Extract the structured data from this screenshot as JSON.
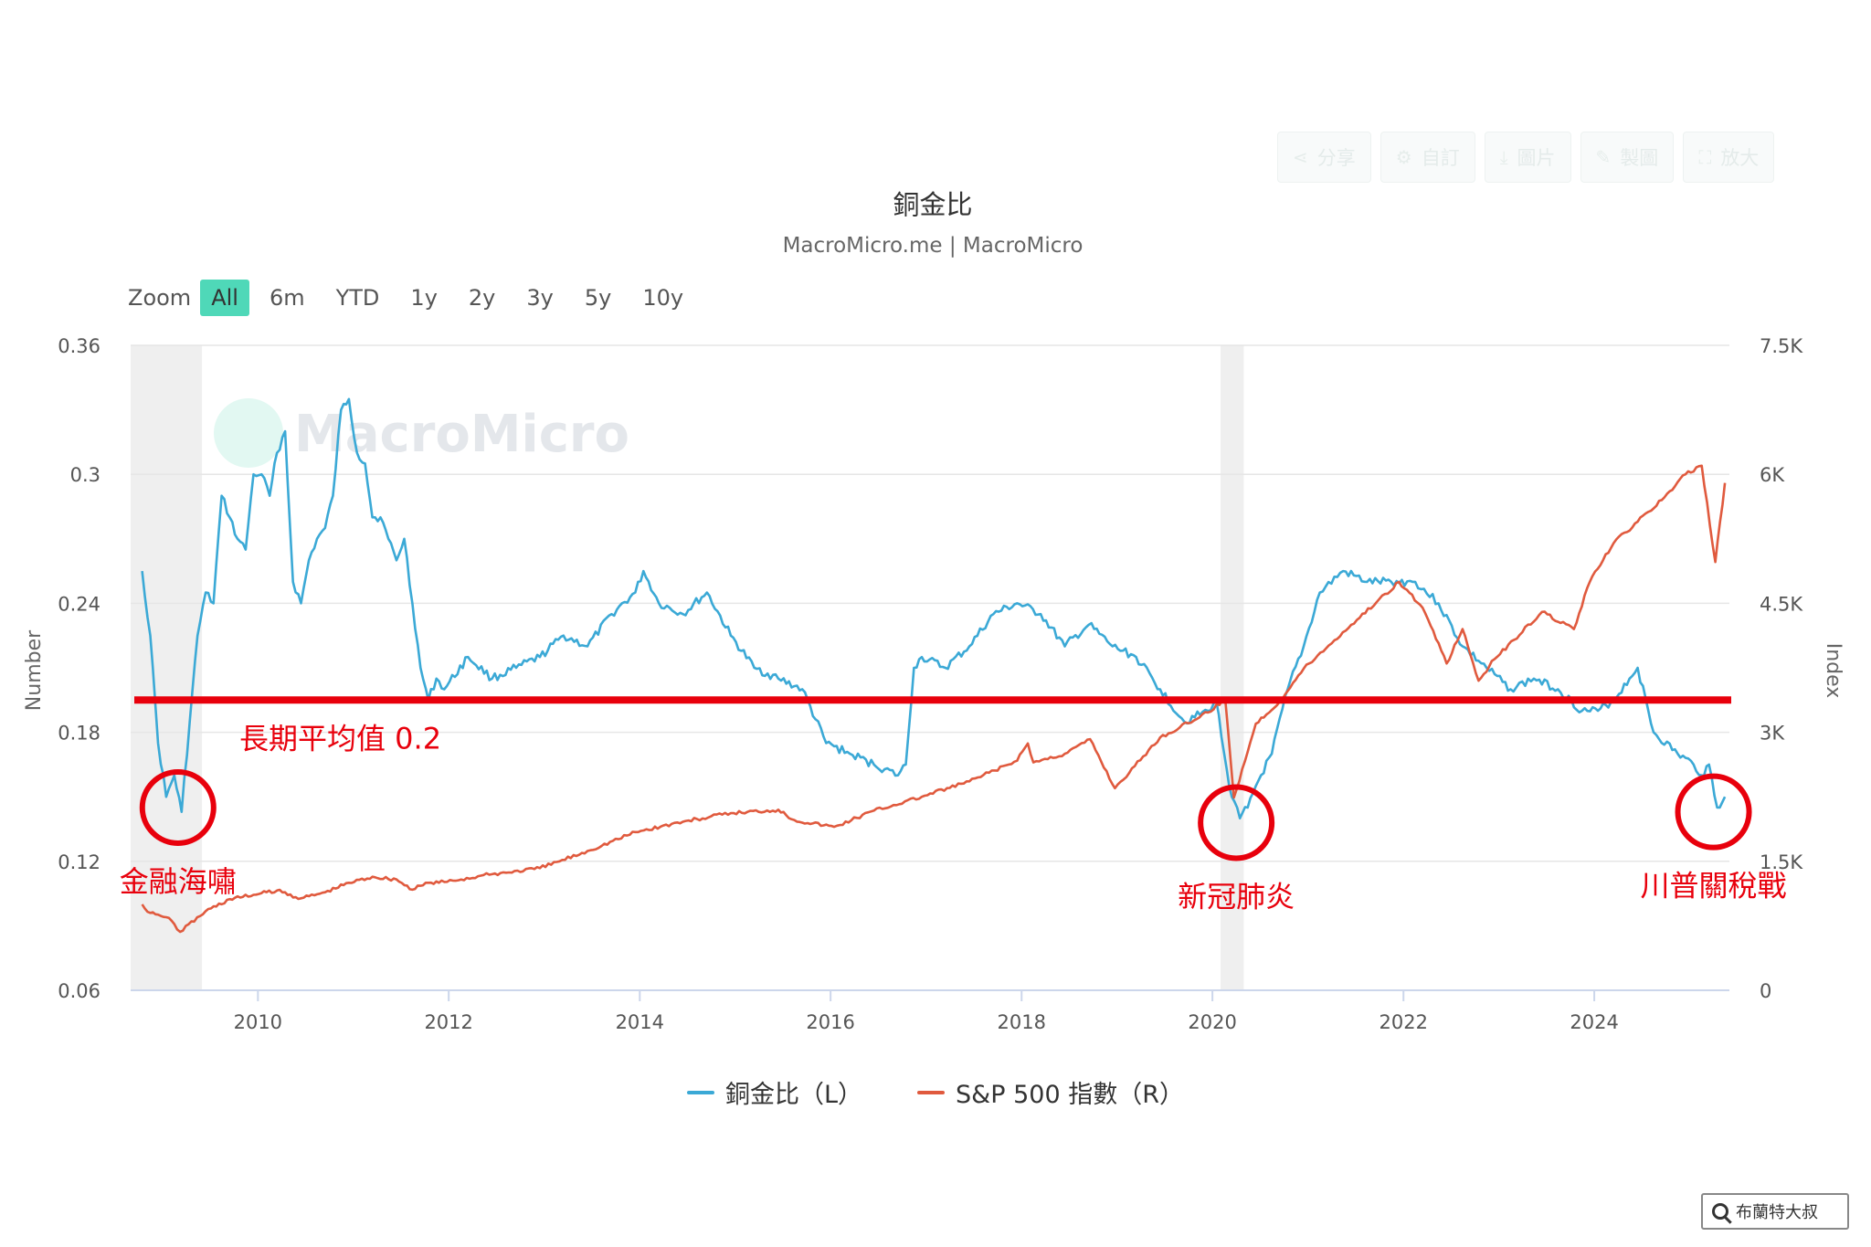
{
  "toolbar": {
    "buttons": [
      {
        "label": "分享",
        "icon": "share-icon"
      },
      {
        "label": "自訂",
        "icon": "gear-icon"
      },
      {
        "label": "圖片",
        "icon": "download-icon"
      },
      {
        "label": "製圖",
        "icon": "pencil-icon"
      },
      {
        "label": "放大",
        "icon": "expand-icon"
      }
    ]
  },
  "zoom": {
    "label": "Zoom",
    "options": [
      "All",
      "6m",
      "YTD",
      "1y",
      "2y",
      "3y",
      "5y",
      "10y"
    ],
    "selected": "All"
  },
  "legend": [
    {
      "label": "銅金比（L）",
      "color": "#3ba9d6"
    },
    {
      "label": "S&P 500 指數（R）",
      "color": "#e05a3e"
    }
  ],
  "colors": {
    "copper_gold": "#3ba9d6",
    "sp500": "#e05a3e",
    "annotation": "#e8000c",
    "recession": "#efefef"
  },
  "annotations": {
    "mean_label": "長期平均值 0.2",
    "mean_value": 0.195,
    "events": [
      {
        "label": "金融海嘯",
        "date": "2009-03-01",
        "value": 0.145
      },
      {
        "label": "新冠肺炎",
        "date": "2020-04-01",
        "value": 0.138
      },
      {
        "label": "川普關稅戰",
        "date": "2025-04-01",
        "value": 0.143
      }
    ]
  },
  "watermark": {
    "text": "MacroMicro",
    "badge": "布蘭特大叔"
  },
  "chart_data": {
    "type": "line",
    "title": "銅金比",
    "subtitle": "MacroMicro.me | MacroMicro",
    "ylabel_left": "Number",
    "ylabel_right": "Index",
    "xlim": [
      "2008-09-01",
      "2025-06-01"
    ],
    "ylim_left": [
      0.06,
      0.36
    ],
    "ylim_right": [
      0,
      7500
    ],
    "yticks_left": [
      "0.06",
      "0.12",
      "0.18",
      "0.24",
      "0.3",
      "0.36"
    ],
    "yticks_right": [
      "0",
      "1.5K",
      "3K",
      "4.5K",
      "6K",
      "7.5K"
    ],
    "xticks": [
      "2010",
      "2012",
      "2014",
      "2016",
      "2018",
      "2020",
      "2022",
      "2024"
    ],
    "grid": true,
    "legend_position": "bottom",
    "recession_bands": [
      [
        "2008-09-01",
        "2009-06-01"
      ],
      [
        "2020-02-01",
        "2020-04-30"
      ]
    ],
    "series": [
      {
        "name": "銅金比（L）",
        "axis": "left",
        "x": [
          "2008-10-15",
          "2008-11-15",
          "2008-12-15",
          "2009-01-15",
          "2009-02-15",
          "2009-03-15",
          "2009-04-15",
          "2009-05-15",
          "2009-06-15",
          "2009-07-15",
          "2009-08-15",
          "2009-09-15",
          "2009-10-15",
          "2009-11-15",
          "2009-12-15",
          "2010-01-15",
          "2010-02-15",
          "2010-03-15",
          "2010-04-15",
          "2010-05-15",
          "2010-06-15",
          "2010-07-15",
          "2010-08-15",
          "2010-09-15",
          "2010-10-15",
          "2010-11-15",
          "2010-12-15",
          "2011-01-15",
          "2011-02-15",
          "2011-03-15",
          "2011-04-15",
          "2011-05-15",
          "2011-06-15",
          "2011-07-15",
          "2011-08-15",
          "2011-09-15",
          "2011-10-15",
          "2011-11-15",
          "2011-12-15",
          "2012-03-15",
          "2012-06-15",
          "2012-09-15",
          "2012-12-15",
          "2013-03-15",
          "2013-06-15",
          "2013-09-15",
          "2013-12-15",
          "2014-01-15",
          "2014-03-15",
          "2014-06-15",
          "2014-09-15",
          "2014-12-15",
          "2015-03-15",
          "2015-06-15",
          "2015-09-15",
          "2015-12-15",
          "2016-03-15",
          "2016-06-15",
          "2016-09-15",
          "2016-10-15",
          "2016-11-15",
          "2016-12-15",
          "2017-03-15",
          "2017-06-15",
          "2017-09-15",
          "2017-12-15",
          "2018-03-15",
          "2018-06-15",
          "2018-09-15",
          "2018-12-15",
          "2019-03-15",
          "2019-06-15",
          "2019-09-15",
          "2019-12-15",
          "2020-01-15",
          "2020-02-15",
          "2020-03-15",
          "2020-04-15",
          "2020-05-15",
          "2020-06-15",
          "2020-08-15",
          "2020-10-15",
          "2020-12-15",
          "2021-02-15",
          "2021-05-15",
          "2021-08-15",
          "2021-11-15",
          "2022-02-15",
          "2022-05-15",
          "2022-08-15",
          "2022-11-15",
          "2023-02-15",
          "2023-05-15",
          "2023-08-15",
          "2023-11-15",
          "2024-01-15",
          "2024-03-15",
          "2024-05-15",
          "2024-06-15",
          "2024-08-15",
          "2024-11-15",
          "2025-01-15",
          "2025-02-15",
          "2025-03-15",
          "2025-04-15",
          "2025-05-15"
        ],
        "y": [
          0.255,
          0.225,
          0.175,
          0.15,
          0.16,
          0.143,
          0.185,
          0.225,
          0.245,
          0.24,
          0.29,
          0.28,
          0.27,
          0.265,
          0.3,
          0.3,
          0.29,
          0.31,
          0.32,
          0.25,
          0.24,
          0.26,
          0.27,
          0.275,
          0.29,
          0.33,
          0.335,
          0.31,
          0.305,
          0.28,
          0.28,
          0.27,
          0.26,
          0.27,
          0.24,
          0.21,
          0.195,
          0.205,
          0.2,
          0.215,
          0.205,
          0.21,
          0.215,
          0.225,
          0.22,
          0.235,
          0.245,
          0.255,
          0.24,
          0.235,
          0.245,
          0.225,
          0.21,
          0.205,
          0.2,
          0.175,
          0.17,
          0.165,
          0.16,
          0.165,
          0.21,
          0.215,
          0.21,
          0.22,
          0.235,
          0.24,
          0.235,
          0.22,
          0.23,
          0.22,
          0.215,
          0.2,
          0.185,
          0.19,
          0.195,
          0.17,
          0.15,
          0.14,
          0.145,
          0.155,
          0.17,
          0.2,
          0.22,
          0.245,
          0.255,
          0.25,
          0.25,
          0.25,
          0.24,
          0.22,
          0.21,
          0.2,
          0.205,
          0.2,
          0.19,
          0.19,
          0.195,
          0.205,
          0.21,
          0.18,
          0.17,
          0.165,
          0.16,
          0.165,
          0.145,
          0.15
        ]
      },
      {
        "name": "S&P 500 指數（R）",
        "axis": "right",
        "x": [
          "2008-10-15",
          "2008-11-15",
          "2008-12-15",
          "2009-01-15",
          "2009-02-15",
          "2009-03-09",
          "2009-06-15",
          "2009-09-15",
          "2009-12-15",
          "2010-03-15",
          "2010-06-15",
          "2010-09-15",
          "2010-12-15",
          "2011-03-15",
          "2011-06-15",
          "2011-08-15",
          "2011-10-15",
          "2011-12-15",
          "2012-06-15",
          "2012-12-15",
          "2013-06-15",
          "2013-12-15",
          "2014-06-15",
          "2014-12-15",
          "2015-06-15",
          "2015-08-15",
          "2016-01-15",
          "2016-06-15",
          "2016-12-15",
          "2017-06-15",
          "2017-12-15",
          "2018-01-25",
          "2018-02-15",
          "2018-06-15",
          "2018-09-20",
          "2018-12-24",
          "2019-06-15",
          "2019-12-15",
          "2020-02-19",
          "2020-03-23",
          "2020-06-15",
          "2020-09-15",
          "2020-12-15",
          "2021-06-15",
          "2021-12-15",
          "2022-03-15",
          "2022-06-15",
          "2022-08-15",
          "2022-10-15",
          "2022-12-15",
          "2023-06-15",
          "2023-10-15",
          "2023-12-15",
          "2024-03-15",
          "2024-06-15",
          "2024-09-15",
          "2024-12-15",
          "2025-02-15",
          "2025-04-08",
          "2025-05-15"
        ],
        "y": [
          1000,
          900,
          880,
          850,
          770,
          680,
          920,
          1060,
          1110,
          1160,
          1070,
          1140,
          1250,
          1320,
          1290,
          1170,
          1250,
          1260,
          1350,
          1420,
          1620,
          1840,
          1960,
          2060,
          2100,
          1980,
          1900,
          2090,
          2250,
          2430,
          2670,
          2870,
          2650,
          2750,
          2920,
          2350,
          2940,
          3230,
          3390,
          2240,
          3100,
          3360,
          3740,
          4250,
          4750,
          4450,
          3800,
          4200,
          3600,
          3850,
          4400,
          4200,
          4750,
          5200,
          5450,
          5700,
          6000,
          6100,
          4980,
          5900
        ]
      }
    ]
  }
}
